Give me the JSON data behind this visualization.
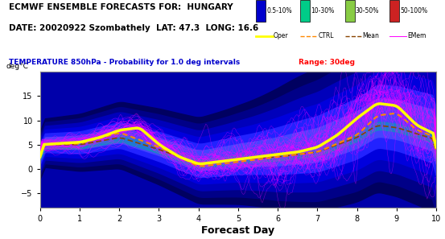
{
  "title_line1": "ECMWF ENSEMBLE FORECASTS FOR:  HUNGARY",
  "title_line2": "DATE: 20020922 Szombathely  LAT: 47.3  LONG: 16.6",
  "subtitle": "TEMPERATURE 850hPa - Probability for 1.0 deg intervals",
  "subtitle_range": "Range: 30deg",
  "xlabel": "Forecast Day",
  "xlim": [
    0,
    10
  ],
  "ylim": [
    -8,
    20
  ],
  "yticks": [
    -5,
    0,
    5,
    10,
    15
  ],
  "xticks": [
    0,
    1,
    2,
    3,
    4,
    5,
    6,
    7,
    8,
    9,
    10
  ],
  "bg_color": "#ffffff",
  "plot_bg_color": "#0000aa",
  "band_color_outer": "#000088",
  "band_color_mid1": "#0000cc",
  "band_color_mid2": "#0000ee",
  "band_color_inner": "#3333ff",
  "cyan_band_color": "#00cccc",
  "oper_color": "#ffff00",
  "ctrl_color": "#ff8800",
  "mean_color": "#884400",
  "emem_color": "#ff00ff",
  "legend_band_colors": [
    "#0000cc",
    "#00cc88",
    "#88cc44",
    "#cc2222"
  ],
  "legend_band_labels": [
    "0.5-10%",
    "10-30%",
    "30-50%",
    "50-100%"
  ],
  "seed": 42
}
